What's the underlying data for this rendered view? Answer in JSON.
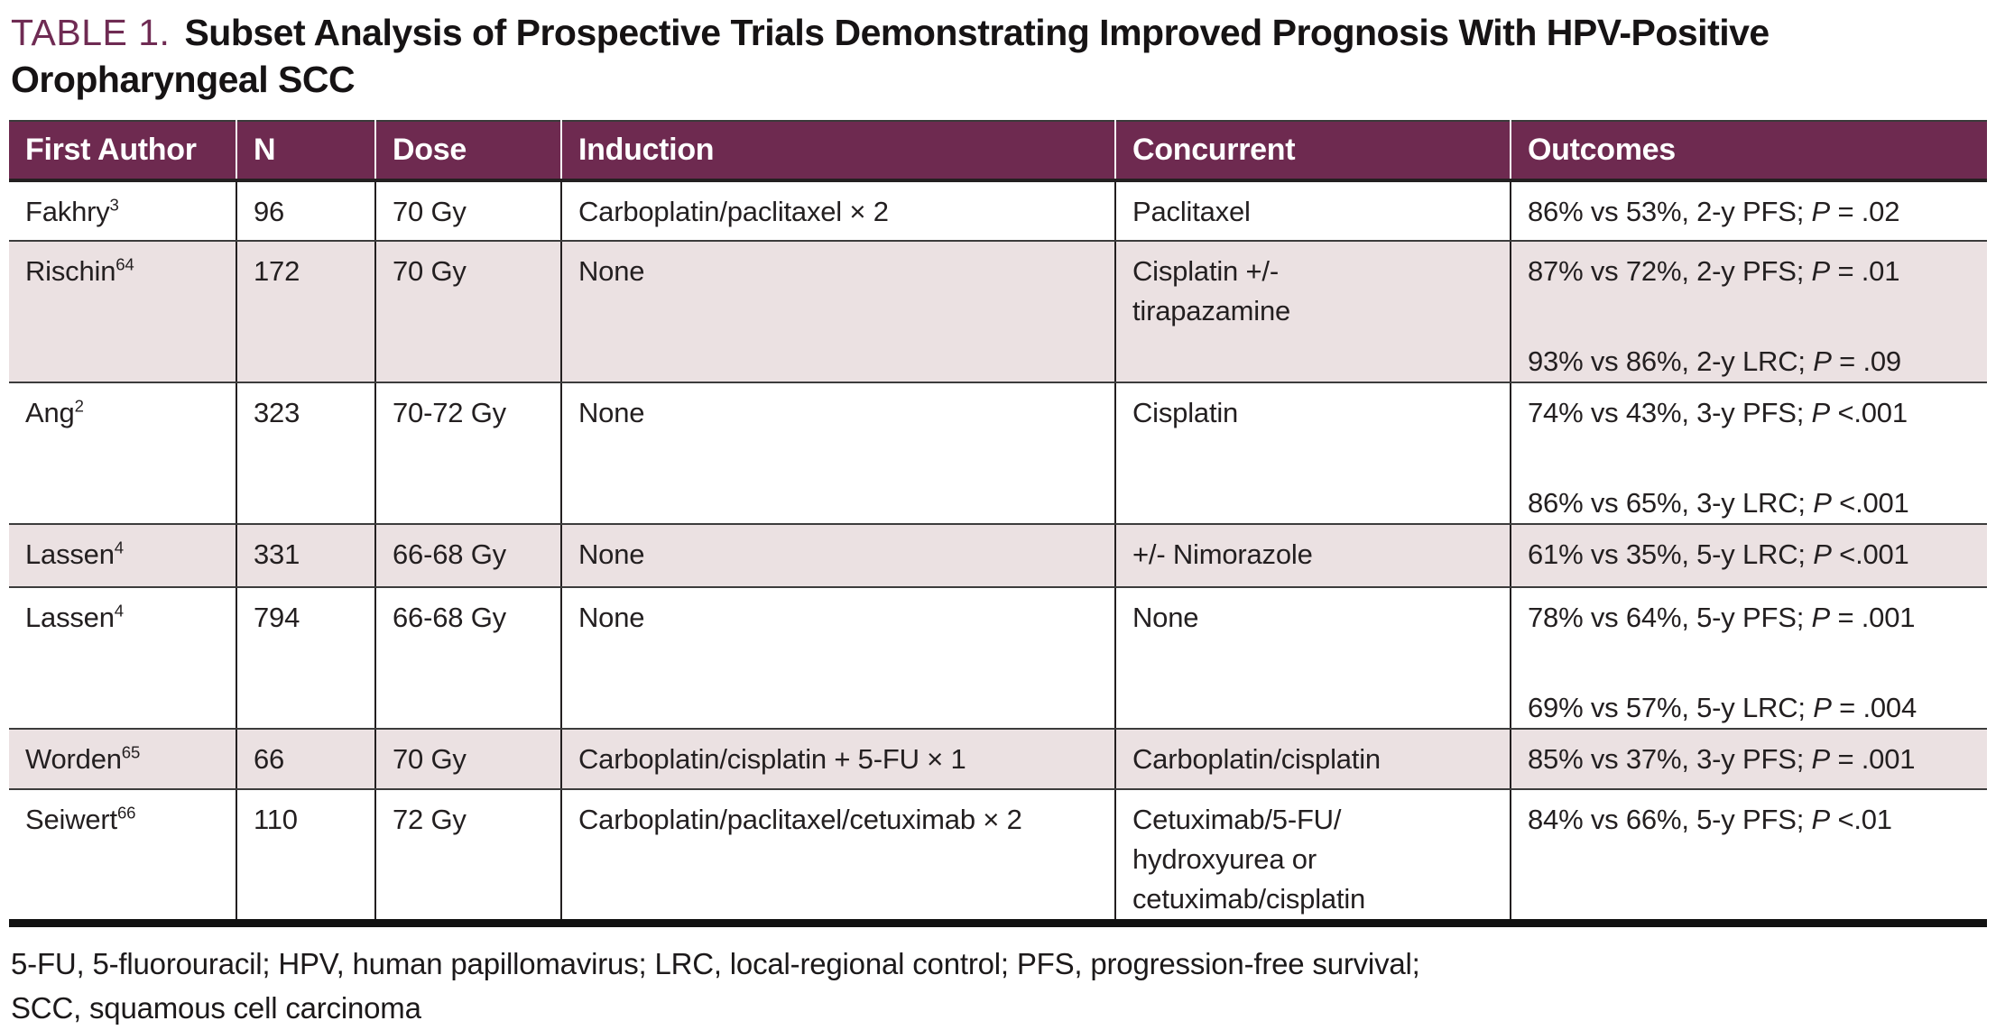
{
  "title": {
    "label": "TABLE 1.",
    "text": "Subset Analysis of Prospective Trials Demonstrating Improved Prognosis With HPV-Positive Oropharyngeal SCC"
  },
  "colors": {
    "header_bg": "#6e2a50",
    "shaded_row_bg": "#ebe1e2",
    "title_accent": "#6f2b53",
    "body_text": "#231f20"
  },
  "table": {
    "columns": [
      "First Author",
      "N",
      "Dose",
      "Induction",
      "Concurrent",
      "Outcomes"
    ],
    "rows": [
      {
        "author": "Fakhry",
        "ref": "3",
        "n": "96",
        "dose": "70 Gy",
        "induction": "Carboplatin/paclitaxel × 2",
        "concurrent": [
          "Paclitaxel"
        ],
        "outcomes": [
          {
            "pre": "86% vs 53%, 2-y PFS; ",
            "p": "P",
            "post": " = .02"
          }
        ],
        "shaded": false
      },
      {
        "author": "Rischin",
        "ref": "64",
        "n": "172",
        "dose": "70 Gy",
        "induction": "None",
        "concurrent": [
          "Cisplatin +/-",
          "tirapazamine"
        ],
        "outcomes": [
          {
            "pre": "87% vs 72%, 2-y PFS; ",
            "p": "P",
            "post": " = .01"
          },
          {
            "pre": "93% vs 86%, 2-y LRC; ",
            "p": "P",
            "post": " = .09"
          }
        ],
        "shaded": true
      },
      {
        "author": "Ang",
        "ref": "2",
        "n": "323",
        "dose": "70-72 Gy",
        "induction": "None",
        "concurrent": [
          "Cisplatin"
        ],
        "outcomes": [
          {
            "pre": "74% vs 43%, 3-y PFS; ",
            "p": "P",
            "post": " <.001"
          },
          {
            "pre": "86% vs 65%, 3-y LRC; ",
            "p": "P",
            "post": " <.001"
          }
        ],
        "shaded": false
      },
      {
        "author": "Lassen",
        "ref": "4",
        "n": "331",
        "dose": "66-68 Gy",
        "induction": "None",
        "concurrent": [
          "+/- Nimorazole"
        ],
        "outcomes": [
          {
            "pre": "61% vs 35%, 5-y LRC; ",
            "p": "P",
            "post": " <.001"
          }
        ],
        "shaded": true
      },
      {
        "author": "Lassen",
        "ref": "4",
        "n": "794",
        "dose": "66-68 Gy",
        "induction": "None",
        "concurrent": [
          "None"
        ],
        "outcomes": [
          {
            "pre": "78% vs 64%, 5-y PFS; ",
            "p": "P",
            "post": " = .001"
          },
          {
            "pre": "69% vs 57%, 5-y LRC; ",
            "p": "P",
            "post": " = .004"
          }
        ],
        "shaded": false
      },
      {
        "author": "Worden",
        "ref": "65",
        "n": "66",
        "dose": "70 Gy",
        "induction": "Carboplatin/cisplatin + 5-FU × 1",
        "concurrent": [
          "Carboplatin/cisplatin"
        ],
        "outcomes": [
          {
            "pre": "85% vs 37%, 3-y PFS; ",
            "p": "P",
            "post": " = .001"
          }
        ],
        "shaded": true
      },
      {
        "author": "Seiwert",
        "ref": "66",
        "n": "110",
        "dose": "72 Gy",
        "induction": "Carboplatin/paclitaxel/cetuximab × 2",
        "concurrent": [
          "Cetuximab/5-FU/",
          "hydroxyurea or",
          "cetuximab/cisplatin"
        ],
        "outcomes": [
          {
            "pre": "84% vs 66%, 5-y PFS; ",
            "p": "P",
            "post": " <.01"
          }
        ],
        "shaded": false
      }
    ]
  },
  "footnote": {
    "lines": [
      "5-FU, 5-fluorouracil; HPV, human papillomavirus; LRC, local-regional control; PFS, progression-free survival;",
      "SCC, squamous cell carcinoma"
    ]
  }
}
